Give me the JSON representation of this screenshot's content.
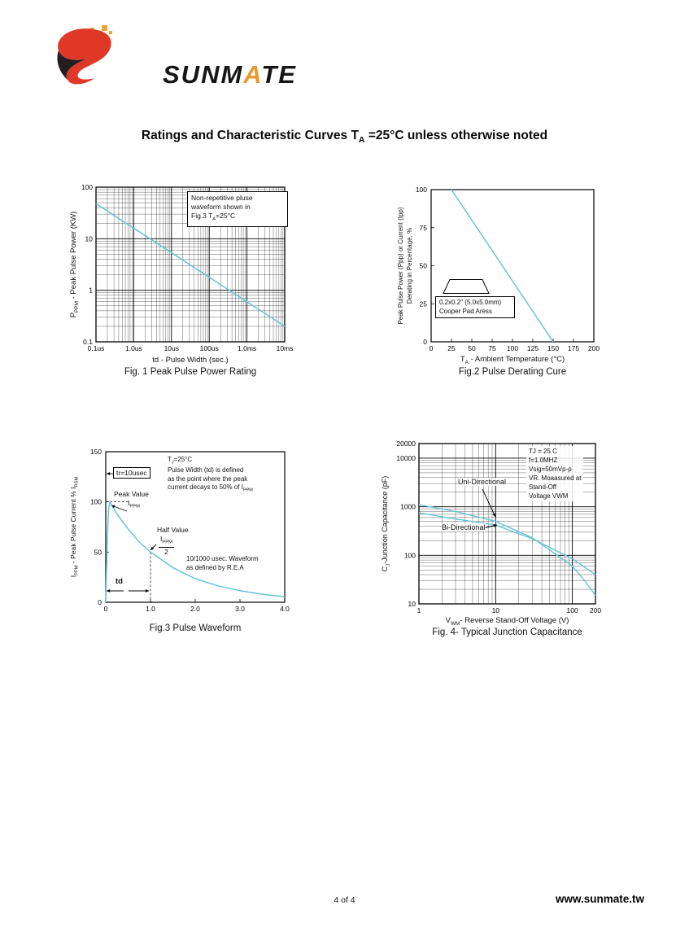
{
  "page": {
    "title_parts": [
      "Ratings and Characteristic Curves T",
      "A",
      " =25°C unless otherwise noted"
    ],
    "brand_parts": [
      "SUNM",
      "A",
      "TE"
    ],
    "footer_page": "4 of 4",
    "footer_site": "www.sunmate.tw",
    "curve_color": "#66c5d6"
  },
  "chart_data": [
    {
      "id": "fig1",
      "type": "line",
      "scale": "log-log",
      "caption": "Fig. 1 Peak Pulse Power Rating",
      "xlabel": "td - Pulse Width (sec.)",
      "ylabel_parts": [
        "P",
        "PPM",
        " - Peak Pulse Power (KW)"
      ],
      "x_ticks": [
        {
          "v": 1e-07,
          "label": "0.1us"
        },
        {
          "v": 1e-06,
          "label": "1.0us"
        },
        {
          "v": 1e-05,
          "label": "10us"
        },
        {
          "v": 0.0001,
          "label": "100us"
        },
        {
          "v": 0.001,
          "label": "1.0ms"
        },
        {
          "v": 0.01,
          "label": "10ms"
        }
      ],
      "y_ticks": [
        {
          "v": 100,
          "label": "100"
        },
        {
          "v": 10,
          "label": "10"
        },
        {
          "v": 1,
          "label": "1"
        },
        {
          "v": 0.1,
          "label": "0.1"
        }
      ],
      "xlim": [
        1e-07,
        0.01
      ],
      "ylim": [
        0.1,
        100
      ],
      "grid": "log-minor",
      "series": [
        {
          "name": "peak-pulse-power",
          "points": [
            [
              1e-07,
              48
            ],
            [
              0.01,
              0.2
            ]
          ]
        }
      ],
      "note_lines": [
        "Non-repetitive pluse",
        "waveform shown in"
      ],
      "note_line3_parts": [
        "Fig.3 T",
        "A",
        "=25°C"
      ]
    },
    {
      "id": "fig2",
      "type": "line",
      "scale": "linear",
      "caption": "Fig.2 Pulse Derating Cure",
      "xlabel_parts": [
        "T",
        "A",
        " - Ambient Temperature (°C)"
      ],
      "ylabel_lines": [
        "Peak Pulse Power (Ppp) or Current (Ipp)",
        "Derating in Percentage, %"
      ],
      "x_ticks": [
        {
          "v": 0,
          "label": "0"
        },
        {
          "v": 25,
          "label": "25"
        },
        {
          "v": 50,
          "label": "50"
        },
        {
          "v": 75,
          "label": "75"
        },
        {
          "v": 100,
          "label": "100"
        },
        {
          "v": 125,
          "label": "125"
        },
        {
          "v": 150,
          "label": "150"
        },
        {
          "v": 175,
          "label": "175"
        },
        {
          "v": 200,
          "label": "200"
        }
      ],
      "y_ticks": [
        {
          "v": 100,
          "label": "100"
        },
        {
          "v": 75,
          "label": "75"
        },
        {
          "v": 50,
          "label": "50"
        },
        {
          "v": 25,
          "label": "25"
        },
        {
          "v": 0,
          "label": "0"
        }
      ],
      "xlim": [
        0,
        200
      ],
      "ylim": [
        0,
        100
      ],
      "grid": "none",
      "series": [
        {
          "name": "derating-curve",
          "points": [
            [
              25,
              100
            ],
            [
              150,
              0
            ]
          ]
        }
      ],
      "pad_note_lines": [
        "0.2x0.2\" (5.0x5.0mm)",
        "Cooper Pad Aress"
      ]
    },
    {
      "id": "fig3",
      "type": "line",
      "scale": "linear",
      "caption": "Fig.3 Pulse Waveform",
      "ylabel_parts": [
        "I",
        "PPM",
        " - Peak Pulse Current % I",
        "RSM"
      ],
      "x_ticks": [
        {
          "v": 0,
          "label": "0"
        },
        {
          "v": 1,
          "label": "1.0"
        },
        {
          "v": 2,
          "label": "2.0"
        },
        {
          "v": 3,
          "label": "3.0"
        },
        {
          "v": 4,
          "label": "4.0"
        }
      ],
      "y_ticks": [
        {
          "v": 150,
          "label": "150"
        },
        {
          "v": 100,
          "label": "100"
        },
        {
          "v": 50,
          "label": "50"
        },
        {
          "v": 0,
          "label": "0"
        }
      ],
      "xlim": [
        0,
        4
      ],
      "ylim": [
        0,
        150
      ],
      "grid": "none",
      "series": [
        {
          "name": "pulse-waveform",
          "points": [
            [
              0,
              0
            ],
            [
              0.03,
              55
            ],
            [
              0.06,
              92
            ],
            [
              0.09,
              100
            ],
            [
              0.25,
              88
            ],
            [
              0.5,
              73
            ],
            [
              0.75,
              60
            ],
            [
              1.0,
              50
            ],
            [
              1.5,
              34.5
            ],
            [
              2.0,
              23.5
            ],
            [
              2.5,
              16.5
            ],
            [
              3.0,
              11.5
            ],
            [
              3.5,
              8
            ],
            [
              4.0,
              5.5
            ]
          ]
        }
      ],
      "ann": {
        "tr": "tr=10usec",
        "tj_parts": [
          "T",
          "J",
          "=25°C"
        ],
        "pw_lines": [
          "Pulse Width (td) is defined",
          "as the point where the peak"
        ],
        "pw_line3_parts": [
          "current decays to 50% of I",
          "PPM"
        ],
        "peak_value": "Peak Value",
        "ippm_parts": [
          "I",
          "PPM"
        ],
        "half_value": "Half Value",
        "frac_num_parts": [
          "I",
          "PPM"
        ],
        "frac_den": "2",
        "rea_lines": [
          "10/1000 usec. Waveform",
          "as defined by R.E.A"
        ],
        "td": "td"
      }
    },
    {
      "id": "fig4",
      "type": "line",
      "scale": "log-log",
      "caption": "Fig. 4- Typical Junction Capacitance",
      "xlabel_parts": [
        "V",
        "WM",
        "- Reverse Stand-Off Voltage (V)"
      ],
      "ylabel_parts": [
        "C",
        "J",
        "-Junction Capacitance (pF)"
      ],
      "x_ticks": [
        {
          "v": 1,
          "label": "1"
        },
        {
          "v": 10,
          "label": "10"
        },
        {
          "v": 100,
          "label": "100"
        },
        {
          "v": 200,
          "label": "200"
        }
      ],
      "y_ticks": [
        {
          "v": 20000,
          "label": "20000"
        },
        {
          "v": 10000,
          "label": "10000"
        },
        {
          "v": 1000,
          "label": "1000"
        },
        {
          "v": 100,
          "label": "100"
        },
        {
          "v": 10,
          "label": "10"
        }
      ],
      "xlim": [
        1,
        200
      ],
      "ylim": [
        10,
        20000
      ],
      "grid": "log-minor",
      "series": [
        {
          "name": "uni-directional",
          "points": [
            [
              1,
              1100
            ],
            [
              3,
              800
            ],
            [
              10,
              500
            ],
            [
              30,
              230
            ],
            [
              100,
              60
            ],
            [
              150,
              28
            ],
            [
              200,
              15
            ]
          ]
        },
        {
          "name": "bi-directional",
          "points": [
            [
              1,
              750
            ],
            [
              3,
              560
            ],
            [
              10,
              420
            ],
            [
              30,
              220
            ],
            [
              100,
              85
            ],
            [
              150,
              55
            ],
            [
              200,
              40
            ]
          ]
        }
      ],
      "labels": {
        "uni": "Uni-Directional",
        "bi": "Bi-Directional"
      },
      "cond_lines": [
        "TJ = 25 C",
        "f=1.0MHZ",
        "Vsig=50mVp-p",
        "VR. Moaasured at",
        "Stand-Off",
        "Voltage  VWM"
      ]
    }
  ]
}
